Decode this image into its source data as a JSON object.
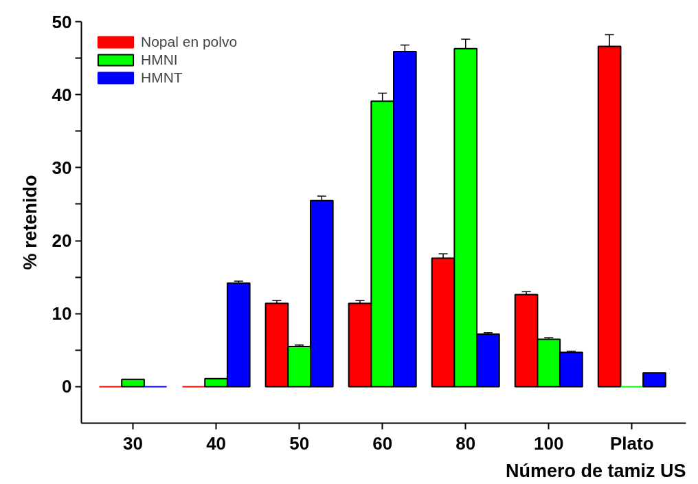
{
  "chart_data": {
    "type": "bar",
    "xlabel": "Número de tamiz US",
    "ylabel": "% retenido",
    "categories": [
      "30",
      "40",
      "50",
      "60",
      "80",
      "100",
      "Plato"
    ],
    "series": [
      {
        "name": "Nopal en polvo",
        "color": "#ff0000",
        "values": [
          0,
          0,
          11.4,
          11.4,
          17.6,
          12.6,
          46.6
        ],
        "errors": [
          null,
          null,
          [
            11.4,
            11.8
          ],
          [
            11.4,
            11.8
          ],
          [
            17.6,
            18.2
          ],
          [
            12.6,
            13.0
          ],
          [
            46.6,
            48.2
          ]
        ]
      },
      {
        "name": "HMNI",
        "color": "#00ff00",
        "values": [
          1.0,
          1.1,
          5.5,
          39.1,
          46.3,
          6.5,
          0
        ],
        "errors": [
          null,
          null,
          [
            5.5,
            5.7
          ],
          [
            39.1,
            40.2
          ],
          [
            46.3,
            47.6
          ],
          [
            6.5,
            6.7
          ],
          null
        ]
      },
      {
        "name": "HMNT",
        "color": "#0000ff",
        "values": [
          0,
          14.2,
          25.5,
          45.9,
          7.2,
          4.7,
          1.9
        ],
        "errors": [
          null,
          [
            14.2,
            14.45
          ],
          [
            25.5,
            26.1
          ],
          [
            45.9,
            46.8
          ],
          [
            7.2,
            7.4
          ],
          [
            4.7,
            4.85
          ],
          null
        ]
      }
    ],
    "ylim": [
      -5,
      50
    ],
    "yticks": [
      0,
      {
        "value": 5,
        "label": null
      },
      10,
      {
        "value": 15,
        "label": null
      },
      20,
      {
        "value": 25,
        "label": null
      },
      30,
      {
        "value": 35,
        "label": null
      },
      40,
      {
        "value": 45,
        "label": null
      },
      50
    ],
    "legend": "top left",
    "grid": false
  }
}
